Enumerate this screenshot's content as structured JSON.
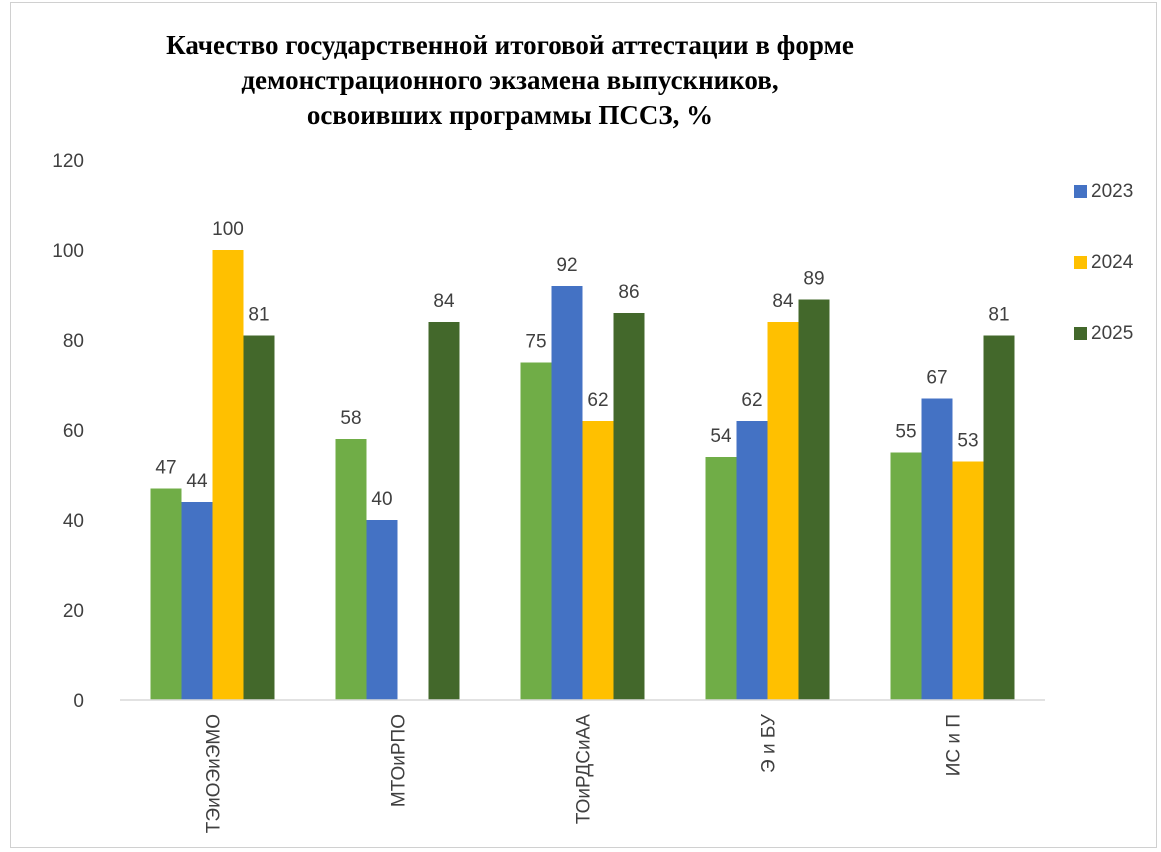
{
  "chart_data": {
    "type": "bar",
    "title_lines": [
      "Качество государственной итоговой аттестации в форме",
      "демонстрационного экзамена выпускников,",
      "освоивших программы ПССЗ, %"
    ],
    "categories": [
      "ТЭиОЭиЭМО",
      "МТОиРПО",
      "ТОиРДСиАА",
      "Э и БУ",
      "ИС и П"
    ],
    "series": [
      {
        "name": "",
        "color": "#70ad47",
        "values": [
          47,
          58,
          75,
          54,
          55
        ]
      },
      {
        "name": "2023",
        "color": "#4472c4",
        "values": [
          44,
          40,
          92,
          62,
          67
        ]
      },
      {
        "name": "2024",
        "color": "#ffc000",
        "values": [
          100,
          null,
          62,
          84,
          53
        ]
      },
      {
        "name": "2025",
        "color": "#43682b",
        "values": [
          81,
          84,
          86,
          89,
          81
        ]
      }
    ],
    "ylim": [
      0,
      120
    ],
    "yticks": [
      0,
      20,
      40,
      60,
      80,
      100,
      120
    ],
    "grid": false,
    "legend_position": "right"
  }
}
